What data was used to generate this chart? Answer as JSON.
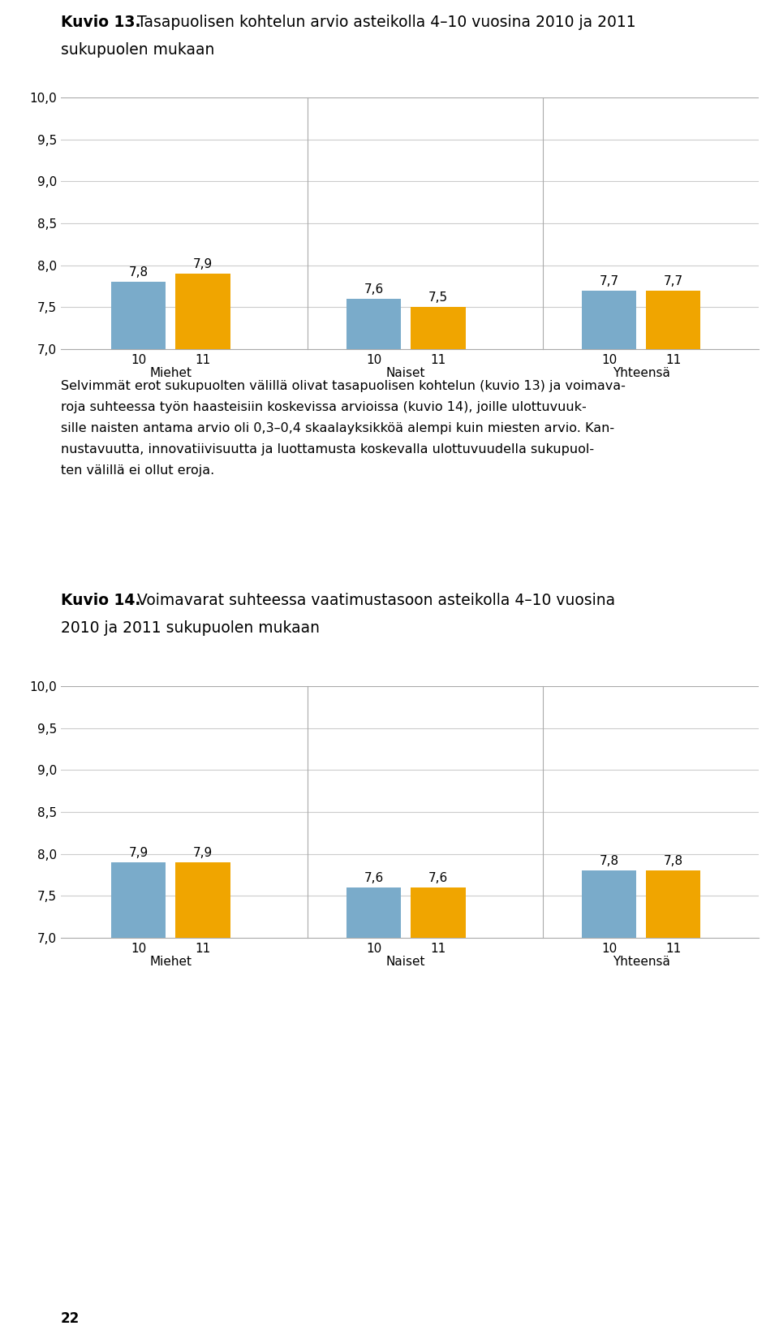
{
  "chart1": {
    "title_bold": "Kuvio 13.",
    "title_rest": " Tasapuolisen kohtelun arvio asteikolla 4–10 vuosina 2010 ja 2011",
    "title_line2": "sukupuolen mukaan",
    "groups": [
      "Miehet",
      "Naiset",
      "Yhteensä"
    ],
    "bar_labels_10": [
      7.8,
      7.6,
      7.7
    ],
    "bar_labels_11": [
      7.9,
      7.5,
      7.7
    ],
    "ylim": [
      7.0,
      10.0
    ],
    "yticks": [
      7.0,
      7.5,
      8.0,
      8.5,
      9.0,
      9.5,
      10.0
    ],
    "ytick_labels": [
      "7,0",
      "7,5",
      "8,0",
      "8,5",
      "9,0",
      "9,5",
      "10,0"
    ]
  },
  "chart2": {
    "title_bold": "Kuvio 14.",
    "title_rest": " Voimavarat suhteessa vaatimustasoon asteikolla 4–10 vuosina",
    "title_line2": "2010 ja 2011 sukupuolen mukaan",
    "groups": [
      "Miehet",
      "Naiset",
      "Yhteensä"
    ],
    "bar_labels_10": [
      7.9,
      7.6,
      7.8
    ],
    "bar_labels_11": [
      7.9,
      7.6,
      7.8
    ],
    "ylim": [
      7.0,
      10.0
    ],
    "yticks": [
      7.0,
      7.5,
      8.0,
      8.5,
      9.0,
      9.5,
      10.0
    ],
    "ytick_labels": [
      "7,0",
      "7,5",
      "8,0",
      "8,5",
      "9,0",
      "9,5",
      "10,0"
    ]
  },
  "middle_text_line1": "Selvimmät erot sukupuolten välillä olivat tasapuolisen kohtelun (kuvio 13) ja voimava-",
  "middle_text_line2": "roja suhteessa työn haasteisiin koskevissa arvioissa (kuvio 14), joille ulottuvuuk-",
  "middle_text_line3": "sille naisten antama arvio oli 0,3–0,4 skaalayksikköä alempi kuin miesten arvio. Kan-",
  "middle_text_line4": "nustavuutta, innovatiivisuutta ja luottamusta koskevalla ulottuvuudella sukupuol-",
  "middle_text_line5": "ten välillä ei ollut eroja.",
  "page_number": "22",
  "color_blue": "#7aabca",
  "color_orange": "#f0a500",
  "bar_width": 0.35,
  "group_positions": [
    1.0,
    2.5,
    4.0
  ],
  "background_color": "#ffffff",
  "grid_color": "#cccccc",
  "spine_color": "#aaaaaa",
  "title_fontsize": 13.5,
  "tick_fontsize": 11,
  "label_fontsize": 11,
  "bar_label_fontsize": 11,
  "text_fontsize": 11.5
}
